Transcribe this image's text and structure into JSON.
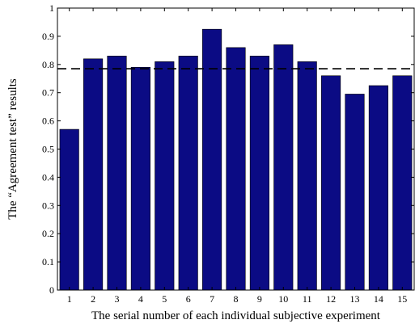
{
  "chart_data": {
    "type": "bar",
    "title": "",
    "xlabel": "The serial number of each individual subjective experiment",
    "ylabel": "The  “Agreement test”  results",
    "categories": [
      "1",
      "2",
      "3",
      "4",
      "5",
      "6",
      "7",
      "8",
      "9",
      "10",
      "11",
      "12",
      "13",
      "14",
      "15"
    ],
    "values": [
      0.57,
      0.82,
      0.83,
      0.79,
      0.81,
      0.83,
      0.925,
      0.86,
      0.83,
      0.87,
      0.81,
      0.76,
      0.695,
      0.725,
      0.76
    ],
    "ylim": [
      0,
      1
    ],
    "yticks": [
      "0",
      "0.1",
      "0.2",
      "0.3",
      "0.4",
      "0.5",
      "0.6",
      "0.7",
      "0.8",
      "0.9",
      "1"
    ],
    "reference_line": {
      "value": 0.785,
      "style": "dashed"
    },
    "bar_color": "#0b0b84",
    "axis_color": "#000000",
    "grid": false,
    "legend": "none"
  }
}
